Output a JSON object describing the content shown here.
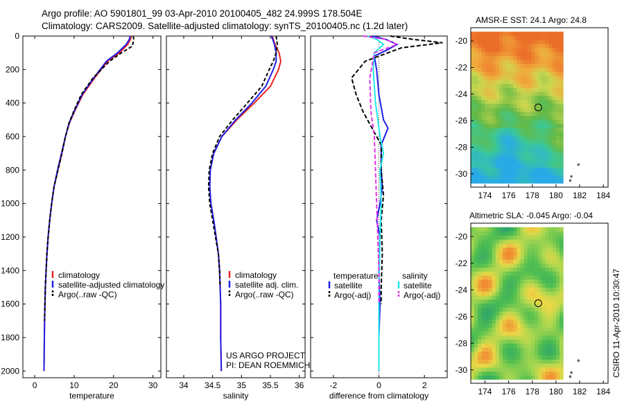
{
  "titles": {
    "line1": "Argo profile: AO 5901801_99 03-Apr-2010 20100405_482 24.999S 178.504E",
    "line2": "Climatology: CARS2009. Satellite-adjusted climatology: synTS_20100405.nc (1.2d later)"
  },
  "credits": {
    "project": "US ARGO PROJECT",
    "pi": "PI: DEAN ROEMMICH",
    "stamp": "CSIRO 11-Apr-2010 10:30:47"
  },
  "colors": {
    "red": "#e8231e",
    "blue": "#1e1ee6",
    "black": "#000000",
    "cyan": "#22e6ea",
    "magenta": "#e235e6"
  },
  "chart_data": [
    {
      "id": "temperature",
      "type": "line",
      "xlabel": "temperature",
      "ylabel": "",
      "xlim": [
        -3,
        32
      ],
      "ylim": [
        2040,
        0
      ],
      "xticks": [
        0,
        10,
        20,
        30
      ],
      "yticks": [
        0,
        200,
        400,
        600,
        800,
        1000,
        1200,
        1400,
        1600,
        1800,
        2000
      ],
      "legend": {
        "position": "lower-right",
        "entries": [
          "climatology",
          "satellite-adjusted climatology",
          "Argo(..raw -QC)"
        ]
      },
      "series": [
        {
          "name": "climatology",
          "color": "#e8231e",
          "dash": "",
          "x": [
            24.5,
            24.3,
            23.6,
            21.5,
            18.5,
            15.2,
            12.2,
            10.1,
            8.8,
            7.8,
            6.9,
            5.9,
            4.9,
            4.3,
            3.8,
            3.4,
            3.1,
            2.9,
            2.7,
            2.6,
            2.5,
            2.45,
            2.4,
            2.38,
            2.35
          ],
          "y": [
            0,
            20,
            50,
            100,
            150,
            250,
            350,
            450,
            520,
            600,
            700,
            800,
            900,
            1000,
            1100,
            1200,
            1300,
            1400,
            1500,
            1600,
            1700,
            1800,
            1900,
            1950,
            2000
          ]
        },
        {
          "name": "satellite-adjusted climatology",
          "color": "#1e1ee6",
          "dash": "",
          "x": [
            24.2,
            24.0,
            23.2,
            21.0,
            18.2,
            15.0,
            12.0,
            10.0,
            8.7,
            7.8,
            6.8,
            5.8,
            4.9,
            4.3,
            3.8,
            3.4,
            3.1,
            2.9,
            2.7,
            2.6,
            2.5,
            2.45,
            2.4,
            2.38,
            2.35
          ],
          "y": [
            0,
            20,
            50,
            100,
            150,
            250,
            350,
            450,
            520,
            600,
            700,
            800,
            900,
            1000,
            1100,
            1200,
            1300,
            1400,
            1500,
            1600,
            1700,
            1800,
            1900,
            1950,
            2000
          ]
        },
        {
          "name": "Argo(..raw -QC)",
          "color": "#000000",
          "dash": "5,3",
          "x": [
            25.0,
            25.1,
            24.8,
            22.0,
            19.0,
            14.8,
            11.8,
            9.9,
            8.7,
            7.8,
            6.9,
            5.9,
            4.9,
            4.3,
            3.8,
            3.4,
            3.1,
            2.9,
            2.7,
            2.6,
            2.5
          ],
          "y": [
            0,
            20,
            60,
            100,
            150,
            250,
            350,
            450,
            520,
            600,
            700,
            800,
            900,
            1000,
            1100,
            1200,
            1300,
            1400,
            1500,
            1600,
            1700
          ]
        }
      ]
    },
    {
      "id": "salinity",
      "type": "line",
      "xlabel": "salinity",
      "ylabel": "",
      "xlim": [
        33.7,
        36.1
      ],
      "ylim": [
        2040,
        0
      ],
      "xticks": [
        34,
        34.5,
        35,
        35.5,
        36
      ],
      "yticks": [
        0,
        200,
        400,
        600,
        800,
        1000,
        1200,
        1400,
        1600,
        1800,
        2000
      ],
      "legend": {
        "position": "lower-right",
        "entries": [
          "climatology",
          "satellite adj. clim.",
          "Argo(..raw -QC)"
        ]
      },
      "series": [
        {
          "name": "climatology",
          "color": "#e8231e",
          "dash": "",
          "x": [
            35.53,
            35.58,
            35.65,
            35.68,
            35.64,
            35.5,
            35.22,
            34.92,
            34.66,
            34.52,
            34.46,
            34.45,
            34.47,
            34.52,
            34.56,
            34.6,
            34.62,
            34.63,
            34.64,
            34.64,
            34.65
          ],
          "y": [
            0,
            50,
            100,
            150,
            200,
            300,
            400,
            500,
            600,
            700,
            800,
            900,
            1000,
            1100,
            1200,
            1300,
            1400,
            1500,
            1600,
            1800,
            2000
          ]
        },
        {
          "name": "satellite adj. clim.",
          "color": "#1e1ee6",
          "dash": "",
          "x": [
            35.52,
            35.57,
            35.6,
            35.6,
            35.55,
            35.42,
            35.18,
            34.9,
            34.66,
            34.52,
            34.46,
            34.45,
            34.47,
            34.52,
            34.56,
            34.6,
            34.62,
            34.63,
            34.64,
            34.64,
            34.65
          ],
          "y": [
            0,
            50,
            100,
            150,
            200,
            300,
            400,
            500,
            600,
            700,
            800,
            900,
            1000,
            1100,
            1200,
            1300,
            1400,
            1500,
            1600,
            1800,
            2000
          ]
        },
        {
          "name": "Argo(..raw -QC)",
          "color": "#000000",
          "dash": "5,3",
          "x": [
            35.6,
            35.62,
            35.6,
            35.55,
            35.48,
            35.35,
            35.1,
            34.85,
            34.62,
            34.5,
            34.44,
            34.43,
            34.45,
            34.5,
            34.55,
            34.6,
            34.62,
            34.63
          ],
          "y": [
            0,
            50,
            100,
            150,
            200,
            300,
            400,
            500,
            600,
            700,
            800,
            900,
            1000,
            1100,
            1200,
            1300,
            1400,
            1500
          ]
        }
      ]
    },
    {
      "id": "difference",
      "type": "line",
      "xlabel": "difference from climatology",
      "ylabel": "",
      "xlim": [
        -3,
        3
      ],
      "ylim": [
        2040,
        0
      ],
      "xticks": [
        -2,
        0,
        2
      ],
      "yticks": [
        0,
        200,
        400,
        600,
        800,
        1000,
        1200,
        1400,
        1600,
        1800,
        2000
      ],
      "legend": {
        "position": "lower-center",
        "col1_header": "temperature",
        "col2_header": "salinity",
        "col1": [
          "satellite",
          "Argo(-adj)"
        ],
        "col2": [
          "satellite",
          "Argo(-adj)"
        ]
      },
      "series": [
        {
          "name": "temperature satellite",
          "color": "#1e1ee6",
          "dash": "",
          "x": [
            -0.3,
            0.3,
            0.8,
            0.4,
            -0.2,
            -0.1,
            0.0,
            0.2,
            0.4,
            0.1,
            0.1,
            0.15,
            0.05,
            -0.1,
            0.05,
            0.0,
            0.05,
            0.0,
            0.0,
            0.0
          ],
          "y": [
            0,
            20,
            50,
            80,
            120,
            200,
            350,
            500,
            550,
            650,
            800,
            900,
            1000,
            1100,
            1200,
            1400,
            1600,
            1800,
            1950,
            2000
          ]
        },
        {
          "name": "temperature Argo(-adj)",
          "color": "#000000",
          "dash": "6,3",
          "x": [
            0.5,
            1.5,
            2.8,
            1.0,
            -0.6,
            -1.2,
            -1.0,
            -0.7,
            -0.3,
            0.1,
            0.1,
            0.2,
            0.1,
            0.15,
            0.1,
            0.1
          ],
          "y": [
            0,
            20,
            40,
            70,
            150,
            250,
            350,
            450,
            550,
            650,
            800,
            950,
            1100,
            1300,
            1500,
            1600
          ]
        },
        {
          "name": "salinity satellite",
          "color": "#22e6ea",
          "dash": "",
          "x": [
            -0.5,
            -0.1,
            0.2,
            -0.2,
            -0.25,
            -0.15,
            -0.05,
            0.05,
            0.2,
            0.05,
            0.1,
            0.05,
            0.0,
            0.0,
            0.0
          ],
          "y": [
            0,
            20,
            50,
            100,
            200,
            400,
            500,
            600,
            700,
            800,
            1000,
            1200,
            1500,
            1800,
            2000
          ]
        },
        {
          "name": "salinity Argo(-adj)",
          "color": "#e235e6",
          "dash": "6,3",
          "x": [
            -0.7,
            0.3,
            0.8,
            -0.2,
            -0.4,
            -0.35,
            -0.2,
            -0.15,
            -0.1,
            -0.05,
            0.0,
            0.0,
            0.0
          ],
          "y": [
            0,
            20,
            50,
            100,
            250,
            450,
            600,
            800,
            1000,
            1200,
            1400,
            1500,
            1600
          ]
        }
      ]
    }
  ],
  "maps": [
    {
      "id": "sst-map",
      "title": "AMSR-E SST: 24.1 Argo: 24.8",
      "xlim": [
        172.8,
        184.4
      ],
      "ylim": [
        -31,
        -19
      ],
      "xticks": [
        174,
        176,
        178,
        180,
        182,
        184
      ],
      "yticks": [
        -20,
        -22,
        -24,
        -26,
        -28,
        -30
      ],
      "argo_location": [
        178.5,
        -25.0
      ]
    },
    {
      "id": "sla-map",
      "title": "Altimetric SLA: -0.045 Argo: -0.04",
      "xlim": [
        172.8,
        184.4
      ],
      "ylim": [
        -31,
        -19
      ],
      "xticks": [
        174,
        176,
        178,
        180,
        182,
        184
      ],
      "yticks": [
        -20,
        -22,
        -24,
        -26,
        -28,
        -30
      ],
      "argo_location": [
        178.5,
        -25.0
      ]
    }
  ]
}
